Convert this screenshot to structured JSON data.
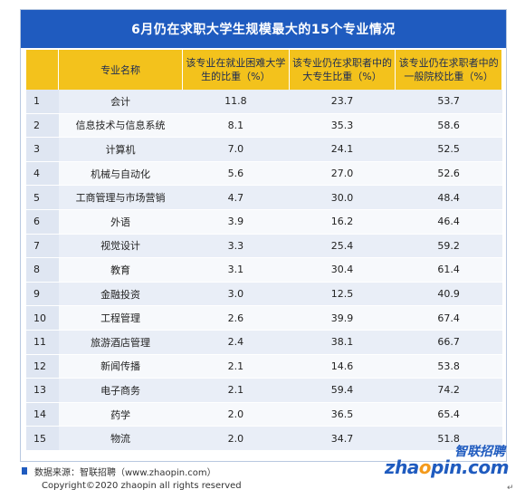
{
  "title": "6月仍在求职大学生规模最大的15个专业情况",
  "chart_data": {
    "type": "table",
    "columns": [
      "",
      "专业名称",
      "该专业在就业困难大学生的比重（%）",
      "该专业仍在求职者中的大专生比重（%）",
      "该专业仍在求职者中的一般院校比重（%）"
    ],
    "rows": [
      {
        "idx": "1",
        "name": "会计",
        "v1": "11.8",
        "v2": "23.7",
        "v3": "53.7"
      },
      {
        "idx": "2",
        "name": "信息技术与信息系统",
        "v1": "8.1",
        "v2": "35.3",
        "v3": "58.6"
      },
      {
        "idx": "3",
        "name": "计算机",
        "v1": "7.0",
        "v2": "24.1",
        "v3": "52.5"
      },
      {
        "idx": "4",
        "name": "机械与自动化",
        "v1": "5.6",
        "v2": "27.0",
        "v3": "52.6"
      },
      {
        "idx": "5",
        "name": "工商管理与市场营销",
        "v1": "4.7",
        "v2": "30.0",
        "v3": "48.4"
      },
      {
        "idx": "6",
        "name": "外语",
        "v1": "3.9",
        "v2": "16.2",
        "v3": "46.4"
      },
      {
        "idx": "7",
        "name": "视觉设计",
        "v1": "3.3",
        "v2": "25.4",
        "v3": "59.2"
      },
      {
        "idx": "8",
        "name": "教育",
        "v1": "3.1",
        "v2": "30.4",
        "v3": "61.4"
      },
      {
        "idx": "9",
        "name": "金融投资",
        "v1": "3.0",
        "v2": "12.5",
        "v3": "40.9"
      },
      {
        "idx": "10",
        "name": "工程管理",
        "v1": "2.6",
        "v2": "39.9",
        "v3": "67.4"
      },
      {
        "idx": "11",
        "name": "旅游酒店管理",
        "v1": "2.4",
        "v2": "38.1",
        "v3": "66.7"
      },
      {
        "idx": "12",
        "name": "新闻传播",
        "v1": "2.1",
        "v2": "14.6",
        "v3": "53.8"
      },
      {
        "idx": "13",
        "name": "电子商务",
        "v1": "2.1",
        "v2": "59.4",
        "v3": "74.2"
      },
      {
        "idx": "14",
        "name": "药学",
        "v1": "2.0",
        "v2": "36.5",
        "v3": "65.4"
      },
      {
        "idx": "15",
        "name": "物流",
        "v1": "2.0",
        "v2": "34.7",
        "v3": "51.8"
      }
    ]
  },
  "footer": {
    "source": "数据来源：智联招聘（www.zhaopin.com）",
    "copyright": "Copyright©2020 zhaopin all rights reserved"
  },
  "logo": {
    "cn": "智联招聘",
    "en_a": "zha",
    "en_o": "o",
    "en_b": "pin.com"
  },
  "colors": {
    "title_bg": "#1f5bbf",
    "header_bg": "#f3c21c",
    "row_alt": "#e9eef7"
  }
}
